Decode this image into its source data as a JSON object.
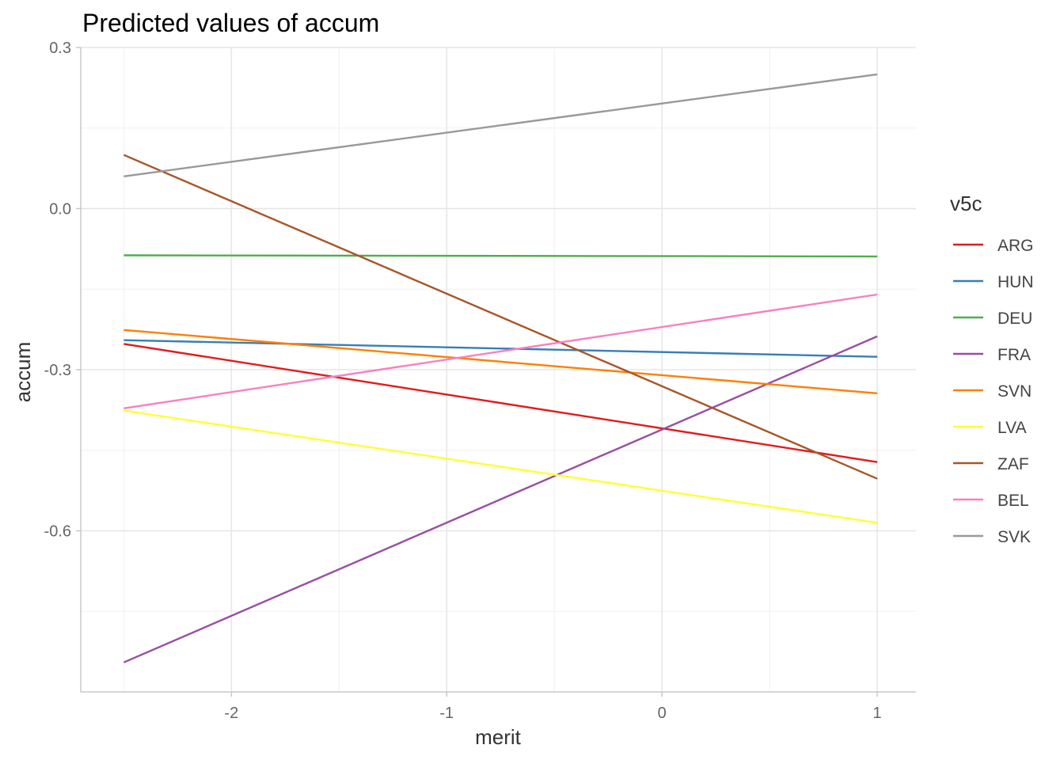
{
  "chart_data": {
    "type": "line",
    "title": "Predicted values of accum",
    "xlabel": "merit",
    "ylabel": "accum",
    "xlim": [
      -2.7,
      1.18
    ],
    "ylim": [
      -0.9,
      0.3
    ],
    "x_ticks": [
      {
        "value": -2,
        "label": "-2"
      },
      {
        "value": -1,
        "label": "-1"
      },
      {
        "value": 0,
        "label": "0"
      },
      {
        "value": 1,
        "label": "1"
      }
    ],
    "y_ticks": [
      {
        "value": 0.3,
        "label": "0.3"
      },
      {
        "value": 0.0,
        "label": "0.0"
      },
      {
        "value": -0.3,
        "label": "-0.3"
      },
      {
        "value": -0.6,
        "label": "-0.6"
      }
    ],
    "x_minor": [
      -2.5,
      -1.5,
      -0.5,
      0.5
    ],
    "y_minor": [
      0.15,
      -0.15,
      -0.45,
      -0.75
    ],
    "grid": true,
    "legend": {
      "title": "v5c",
      "position": "right"
    },
    "series": [
      {
        "name": "ARG",
        "color": "#E41A1C",
        "x": [
          -2.5,
          1
        ],
        "y": [
          -0.252,
          -0.472
        ]
      },
      {
        "name": "HUN",
        "color": "#377EB8",
        "x": [
          -2.5,
          1
        ],
        "y": [
          -0.245,
          -0.276
        ]
      },
      {
        "name": "DEU",
        "color": "#4DAF4A",
        "x": [
          -2.5,
          1
        ],
        "y": [
          -0.087,
          -0.089
        ]
      },
      {
        "name": "FRA",
        "color": "#984EA3",
        "x": [
          -2.5,
          1
        ],
        "y": [
          -0.845,
          -0.238
        ]
      },
      {
        "name": "SVN",
        "color": "#FF7F00",
        "x": [
          -2.5,
          1
        ],
        "y": [
          -0.226,
          -0.344
        ]
      },
      {
        "name": "LVA",
        "color": "#FFFF33",
        "x": [
          -2.5,
          1
        ],
        "y": [
          -0.376,
          -0.585
        ]
      },
      {
        "name": "ZAF",
        "color": "#A65628",
        "x": [
          -2.5,
          1
        ],
        "y": [
          0.1,
          -0.503
        ]
      },
      {
        "name": "BEL",
        "color": "#F781BF",
        "x": [
          -2.5,
          1
        ],
        "y": [
          -0.372,
          -0.16
        ]
      },
      {
        "name": "SVK",
        "color": "#999999",
        "x": [
          -2.5,
          1
        ],
        "y": [
          0.06,
          0.25
        ]
      }
    ]
  }
}
